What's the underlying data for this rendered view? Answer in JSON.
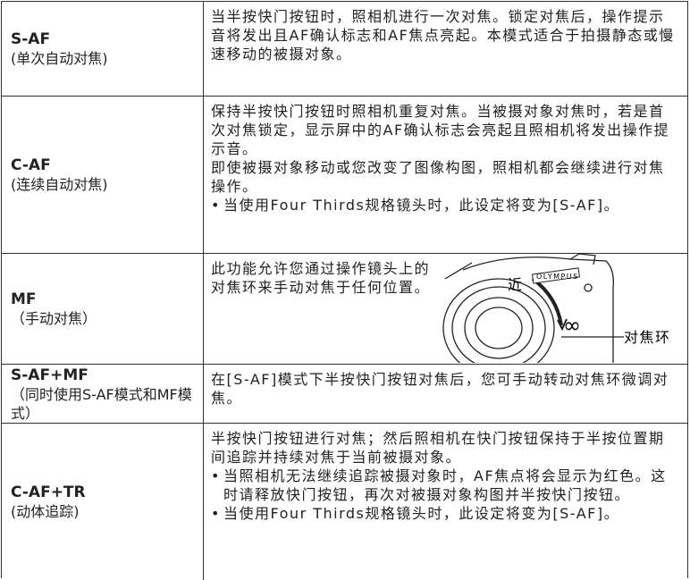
{
  "table": {
    "rows": [
      {
        "mode": "S-AF",
        "desc": "(单次自动对焦)",
        "paragraphs": [
          "当半按快门按钮时，照相机进行一次对焦。锁定对焦后，操作提示音将发出且AF确认标志和AF焦点亮起。本模式适合于拍摄静态或慢速移动的被摄对象。"
        ],
        "bullets": []
      },
      {
        "mode": "C-AF",
        "desc": "(连续自动对焦)",
        "paragraphs": [
          "保持半按快门按钮时照相机重复对焦。当被摄对象对焦时，若是首次对焦锁定，显示屏中的AF确认标志会亮起且照相机将发出操作提示音。",
          "即使被摄对象移动或您改变了图像构图，照相机都会继续进行对焦操作。"
        ],
        "bullets": [
          "当使用Four Thirds规格镜头时，此设定将变为[S-AF]。"
        ]
      },
      {
        "mode": "MF",
        "desc": "（手动对焦）",
        "paragraphs": [
          "此功能允许您通过操作镜头上的对焦环来手动对焦于任何位置。"
        ],
        "bullets": []
      },
      {
        "mode": "S-AF+MF",
        "desc": "（同时使用S-AF模式和MF模式）",
        "paragraphs": [
          "在[S-AF]模式下半按快门按钮对焦后，您可手动转动对焦环微调对焦。"
        ],
        "bullets": []
      },
      {
        "mode": "C-AF+TR",
        "desc": "(动体追踪)",
        "paragraphs": [
          "半按快门按钮进行对焦；然后照相机在快门按钮保持于半按位置期间追踪并持续对焦于当前被摄对象。"
        ],
        "bullets": [
          "当照相机无法继续追踪被摄对象时，AF焦点将会显示为红色。这时请释放快门按钮，再次对被摄对象构图并半按快门按钮。",
          "当使用Four Thirds规格镜头时，此设定将变为[S-AF]。"
        ]
      }
    ]
  },
  "figure": {
    "brand": "OLYMPUS",
    "near": "近",
    "infinity": "∞",
    "ring": "对焦环"
  }
}
